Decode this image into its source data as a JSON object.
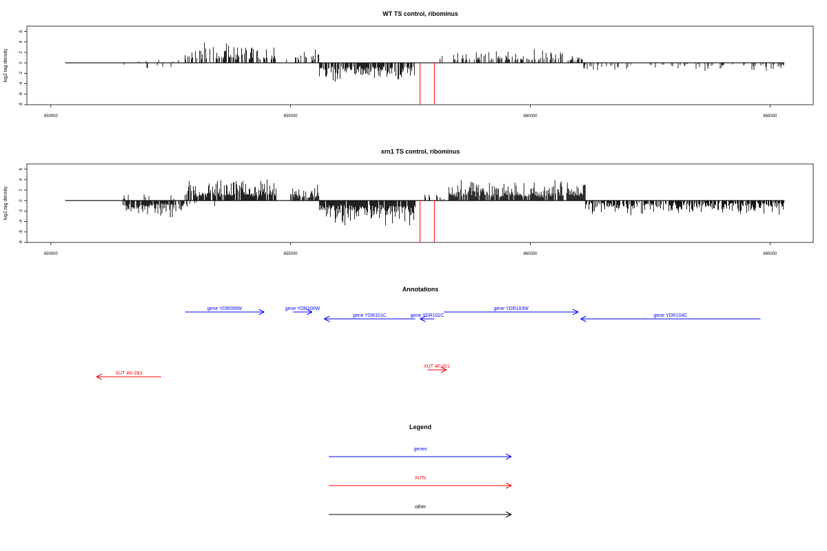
{
  "colors": {
    "genes": "#0000ff",
    "xuts": "#ff0000",
    "other": "#000000",
    "marker": "#ff0000"
  },
  "chart_data": [
    {
      "type": "bar",
      "title": "WT TS control, ribominus",
      "ylabel": "log2 tag density",
      "xlim": [
        649500,
        665900
      ],
      "ylim": [
        -8,
        7
      ],
      "yticks": [
        -8,
        -6,
        -4,
        -2,
        0,
        2,
        4,
        6
      ],
      "xticks": [
        650000,
        655000,
        660000,
        665000
      ],
      "baseline": [
        650300,
        665300
      ],
      "markers": [
        657700,
        658000
      ],
      "segments": [
        {
          "from": 651500,
          "to": 652800,
          "sign": 1,
          "amp": 1.0,
          "density": 0.04,
          "seed": 11
        },
        {
          "from": 651500,
          "to": 652800,
          "sign": -1,
          "amp": 1.6,
          "density": 0.05,
          "seed": 12
        },
        {
          "from": 652800,
          "to": 654700,
          "sign": 1,
          "amp": 3.2,
          "density": 0.55,
          "seed": 13
        },
        {
          "from": 654700,
          "to": 655100,
          "sign": 1,
          "amp": 0.8,
          "density": 0.05,
          "seed": 14
        },
        {
          "from": 655100,
          "to": 655600,
          "sign": 1,
          "amp": 2.4,
          "density": 0.35,
          "seed": 15
        },
        {
          "from": 655600,
          "to": 657600,
          "sign": -1,
          "amp": 3.4,
          "density": 0.75,
          "seed": 16
        },
        {
          "from": 658000,
          "to": 658200,
          "sign": 1,
          "amp": 1.6,
          "density": 0.2,
          "seed": 17
        },
        {
          "from": 658400,
          "to": 661100,
          "sign": 1,
          "amp": 2.2,
          "density": 0.5,
          "seed": 18
        },
        {
          "from": 661100,
          "to": 665300,
          "sign": -1,
          "amp": 1.4,
          "density": 0.2,
          "seed": 19
        },
        {
          "from": 662800,
          "to": 663400,
          "sign": 1,
          "amp": 1.0,
          "density": 0.03,
          "seed": 20
        }
      ]
    },
    {
      "type": "bar",
      "title": "xrn1 TS control, ribominus",
      "ylabel": "log2 tag density",
      "xlim": [
        649500,
        665900
      ],
      "ylim": [
        -8,
        7
      ],
      "yticks": [
        -8,
        -6,
        -4,
        -2,
        0,
        2,
        4,
        6
      ],
      "xticks": [
        650000,
        655000,
        660000,
        665000
      ],
      "baseline": [
        650300,
        665300
      ],
      "markers": [
        657700,
        658000
      ],
      "segments": [
        {
          "from": 651500,
          "to": 652800,
          "sign": 1,
          "amp": 1.2,
          "density": 0.12,
          "seed": 31
        },
        {
          "from": 651500,
          "to": 652800,
          "sign": -1,
          "amp": 2.6,
          "density": 0.8,
          "seed": 32
        },
        {
          "from": 652800,
          "to": 654700,
          "sign": 1,
          "amp": 3.8,
          "density": 0.8,
          "seed": 33
        },
        {
          "from": 652800,
          "to": 653500,
          "sign": -1,
          "amp": 1.0,
          "density": 0.12,
          "seed": 34
        },
        {
          "from": 654700,
          "to": 655000,
          "sign": -1,
          "amp": 0.8,
          "density": 0.06,
          "seed": 35
        },
        {
          "from": 655000,
          "to": 655600,
          "sign": 1,
          "amp": 2.8,
          "density": 0.8,
          "seed": 36
        },
        {
          "from": 655600,
          "to": 657600,
          "sign": -1,
          "amp": 4.2,
          "density": 0.95,
          "seed": 37
        },
        {
          "from": 657800,
          "to": 658300,
          "sign": 1,
          "amp": 1.4,
          "density": 0.3,
          "seed": 38
        },
        {
          "from": 658300,
          "to": 661150,
          "sign": 1,
          "amp": 3.4,
          "density": 0.9,
          "seed": 39
        },
        {
          "from": 661150,
          "to": 665300,
          "sign": -1,
          "amp": 2.2,
          "density": 0.75,
          "seed": 40
        }
      ]
    }
  ],
  "annotations": {
    "title": "Annotations",
    "genes": [
      {
        "label": "gene YDR099W",
        "from": 652800,
        "to": 654450,
        "dir": "right",
        "row": 0
      },
      {
        "label": "gene YDR100W",
        "from": 655050,
        "to": 655450,
        "dir": "right",
        "row": 0
      },
      {
        "label": "gene YDR101C",
        "from": 657600,
        "to": 655700,
        "dir": "left",
        "row": 1
      },
      {
        "label": "gene YDR102C",
        "from": 658000,
        "to": 657700,
        "dir": "left",
        "row": 1
      },
      {
        "label": "gene YDR103W",
        "from": 658200,
        "to": 661000,
        "dir": "right",
        "row": 0
      },
      {
        "label": "gene YDR104C",
        "from": 664800,
        "to": 661050,
        "dir": "left",
        "row": 1
      }
    ],
    "xuts": [
      {
        "label": "XUT 4R-283",
        "from": 652300,
        "to": 650950,
        "dir": "left"
      },
      {
        "label": "XUT 4F-321",
        "from": 657850,
        "to": 658250,
        "dir": "right"
      }
    ]
  },
  "legend": {
    "title": "Legend",
    "items": [
      {
        "label": "genes",
        "key": "genes"
      },
      {
        "label": "XUTs",
        "key": "xuts"
      },
      {
        "label": "other",
        "key": "other"
      }
    ]
  }
}
